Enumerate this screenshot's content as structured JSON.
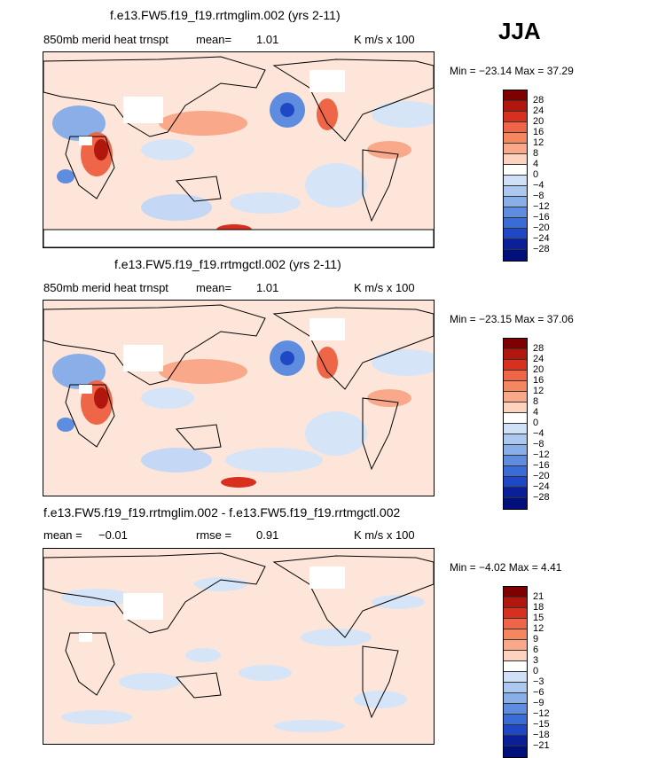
{
  "season": "JJA",
  "panels": [
    {
      "title": "f.e13.FW5.f19_f19.rrtmglim.002 (yrs 2-11)",
      "field_label": "850mb merid heat trnspt",
      "mean_label": "mean=",
      "mean_value": "1.01",
      "units": "K m/s x 100",
      "minmax": "Min = −23.14 Max =  37.29",
      "colorbar_ticks": [
        "28",
        "24",
        "20",
        "16",
        "12",
        "8",
        "4",
        "0",
        "−4",
        "−8",
        "−12",
        "−16",
        "−20",
        "−24",
        "−28"
      ]
    },
    {
      "title": "f.e13.FW5.f19_f19.rrtmgctl.002 (yrs 2-11)",
      "field_label": "850mb merid heat trnspt",
      "mean_label": "mean=",
      "mean_value": "1.01",
      "units": "K m/s x 100",
      "minmax": "Min = −23.15 Max =  37.06",
      "colorbar_ticks": [
        "28",
        "24",
        "20",
        "16",
        "12",
        "8",
        "4",
        "0",
        "−4",
        "−8",
        "−12",
        "−16",
        "−20",
        "−24",
        "−28"
      ]
    },
    {
      "title": "f.e13.FW5.f19_f19.rrtmglim.002 - f.e13.FW5.f19_f19.rrtmgctl.002",
      "mean_label": "mean =",
      "mean_value": "−0.01",
      "rmse_label": "rmse =",
      "rmse_value": "0.91",
      "units": "K m/s x 100",
      "minmax": "Min =  −4.02 Max =    4.41",
      "colorbar_ticks": [
        "21",
        "18",
        "15",
        "12",
        "9",
        "6",
        "3",
        "0",
        "−3",
        "−6",
        "−9",
        "−12",
        "−15",
        "−18",
        "−21"
      ]
    }
  ],
  "colors": {
    "colorbar": [
      "#7f0000",
      "#b2170e",
      "#d7301f",
      "#ef6548",
      "#f4875f",
      "#f9a98a",
      "#fdd3c0",
      "#ffffff",
      "#cfe0f7",
      "#adc8f0",
      "#8aaee8",
      "#5e8de0",
      "#3a6cd6",
      "#1f49c4",
      "#0a1f99",
      "#00107a"
    ],
    "land": "#ffffff",
    "ocean_pos": "#fde6d9",
    "ocean_neg": "#d6e4f8"
  }
}
